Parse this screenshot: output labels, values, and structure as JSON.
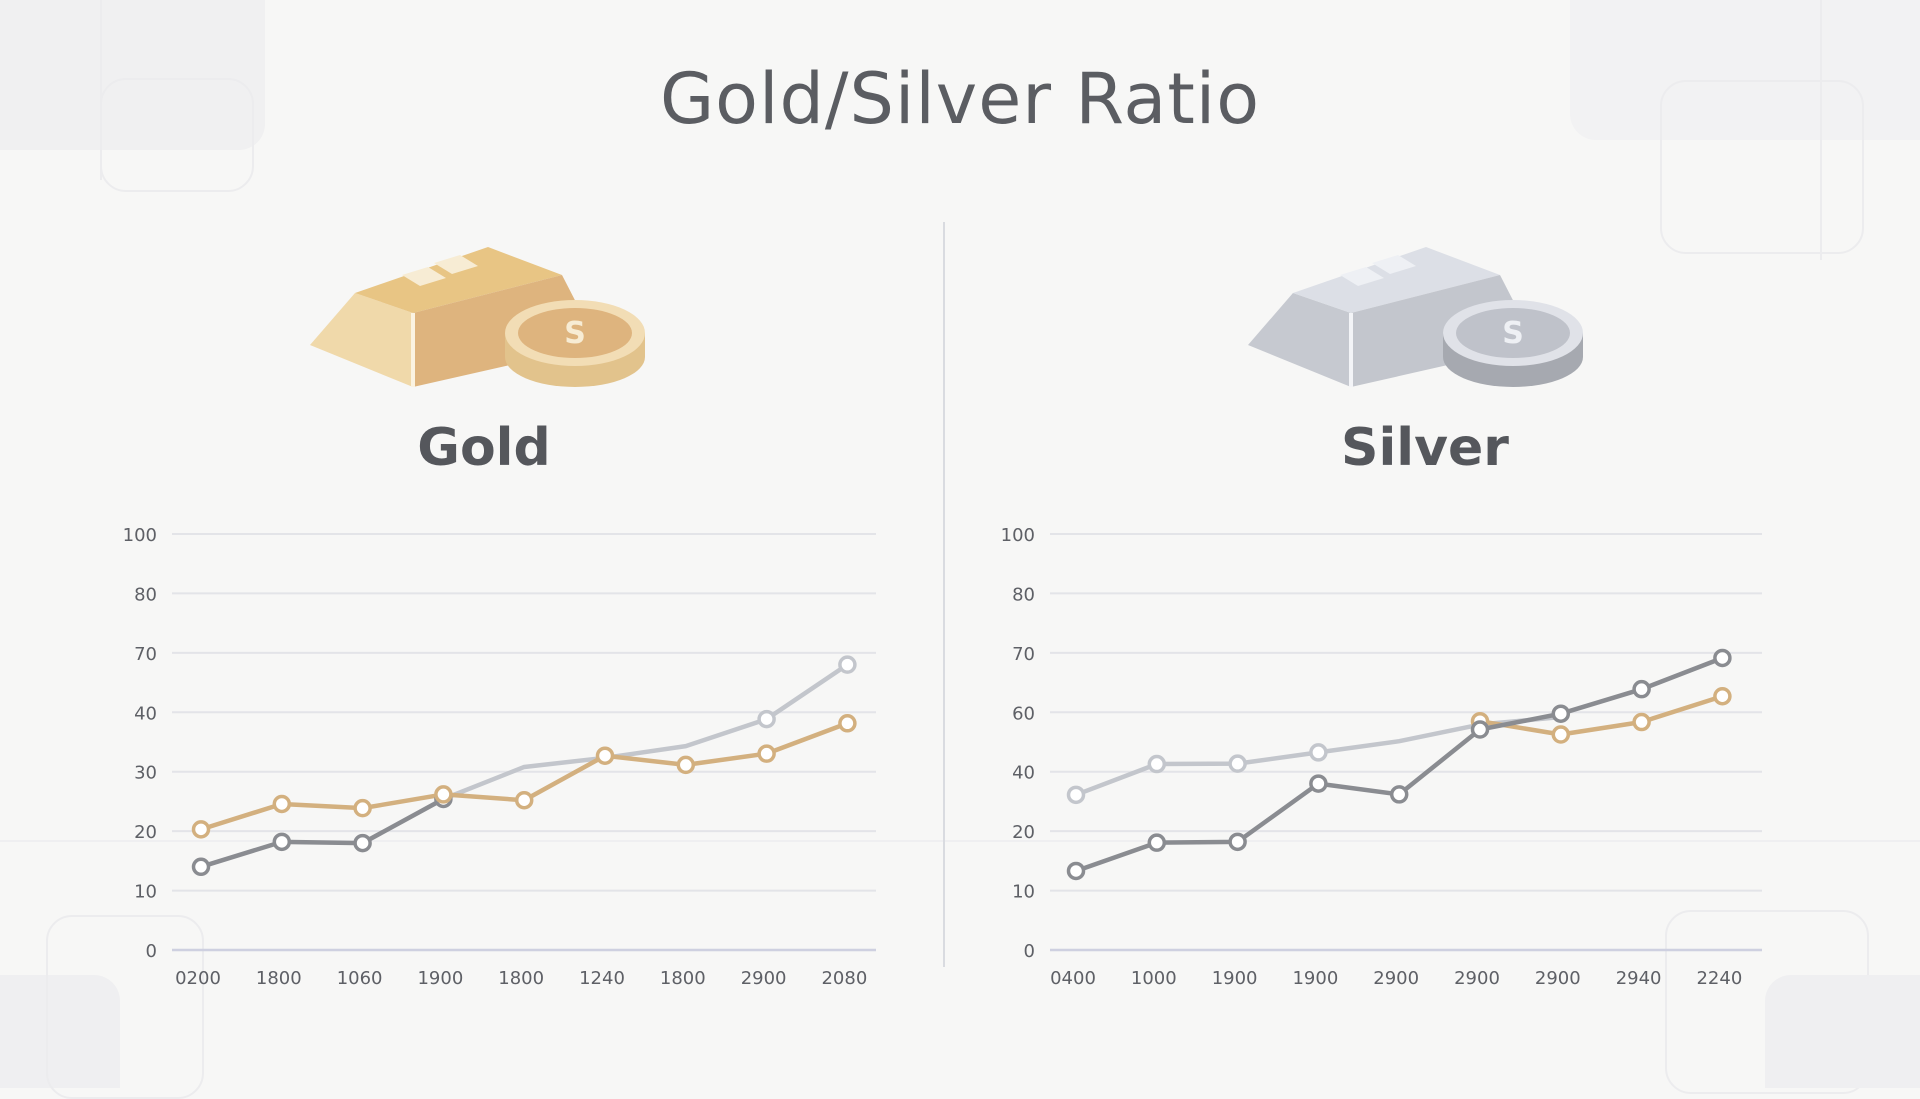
{
  "title": "Gold/Silver Ratio",
  "colors": {
    "gold": "#d3b07f",
    "gray": "#8a8c91",
    "light_gray": "#c3c6cc",
    "grid": "#e3e4e8",
    "axis": "#ced0e0"
  },
  "panels": {
    "gold": {
      "label": "Gold",
      "icon": "gold-bar-coin-icon"
    },
    "silver": {
      "label": "Silver",
      "icon": "silver-bar-coin-icon"
    }
  },
  "chart_data": [
    {
      "type": "line",
      "title": "",
      "categories": [
        "0200",
        "1800",
        "1060",
        "1900",
        "1800",
        "1240",
        "1800",
        "2900",
        "2080"
      ],
      "y_ticks": [
        "0",
        "10",
        "20",
        "30",
        "40",
        "70",
        "80",
        "100"
      ],
      "grid": true,
      "series": [
        {
          "color": "gray",
          "values": [
            0.2,
            0.26,
            0.257,
            0.363,
            null,
            null,
            null,
            null,
            null
          ],
          "markers": [
            true,
            true,
            true,
            true,
            false,
            false,
            false,
            false,
            false
          ]
        },
        {
          "color": "light_gray",
          "values": [
            null,
            null,
            null,
            0.363,
            0.44,
            0.462,
            0.49,
            0.555,
            0.686
          ],
          "markers": [
            false,
            false,
            false,
            false,
            false,
            false,
            false,
            true,
            true
          ]
        },
        {
          "color": "gold",
          "values": [
            0.29,
            0.351,
            0.341,
            0.374,
            0.36,
            0.467,
            0.445,
            0.472,
            0.545
          ],
          "markers": [
            true,
            true,
            true,
            true,
            true,
            true,
            true,
            true,
            true
          ]
        }
      ]
    },
    {
      "type": "line",
      "title": "",
      "categories": [
        "0400",
        "1000",
        "1900",
        "1900",
        "2900",
        "2900",
        "2900",
        "2940",
        "2240"
      ],
      "y_ticks": [
        "0",
        "10",
        "20",
        "40",
        "60",
        "70",
        "80",
        "100"
      ],
      "grid": true,
      "series": [
        {
          "color": "light_gray",
          "values": [
            0.373,
            0.447,
            0.448,
            0.475,
            0.502,
            0.542,
            0.56,
            null,
            null
          ],
          "markers": [
            true,
            true,
            true,
            true,
            false,
            false,
            false,
            false,
            false
          ]
        },
        {
          "color": "gold",
          "values": [
            null,
            null,
            null,
            null,
            null,
            0.55,
            0.518,
            0.548,
            0.61
          ],
          "markers": [
            false,
            false,
            false,
            false,
            false,
            true,
            true,
            true,
            true
          ]
        },
        {
          "color": "gray",
          "values": [
            0.19,
            0.258,
            0.26,
            0.4,
            0.374,
            0.53,
            0.568,
            0.627,
            0.702
          ],
          "markers": [
            true,
            true,
            true,
            true,
            true,
            true,
            true,
            true,
            true
          ]
        }
      ]
    }
  ]
}
